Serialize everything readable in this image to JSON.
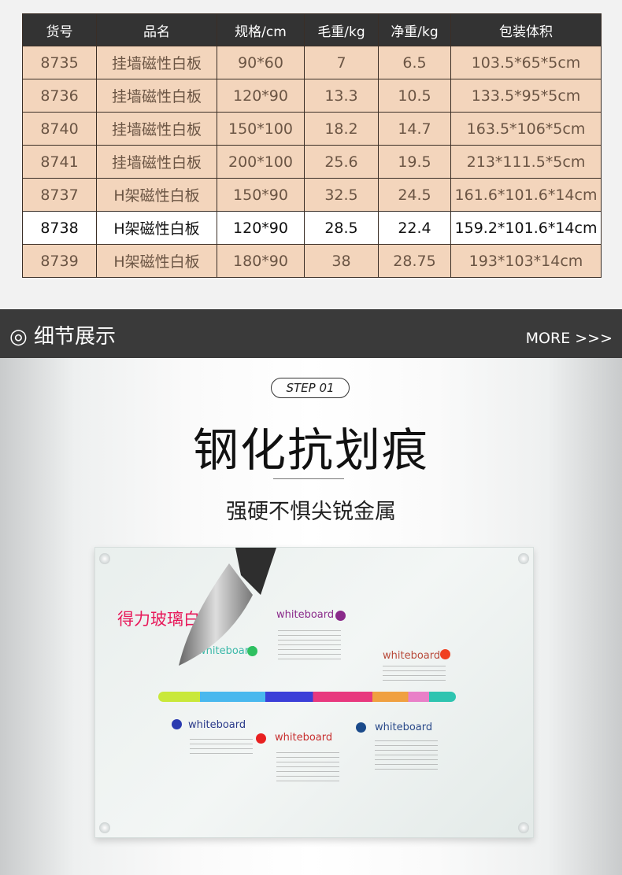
{
  "table": {
    "headers": [
      "货号",
      "品名",
      "规格/cm",
      "毛重/kg",
      "净重/kg",
      "包装体积"
    ],
    "rows": [
      [
        "8735",
        "挂墙磁性白板",
        "90*60",
        "7",
        "6.5",
        "103.5*65*5cm"
      ],
      [
        "8736",
        "挂墙磁性白板",
        "120*90",
        "13.3",
        "10.5",
        "133.5*95*5cm"
      ],
      [
        "8740",
        "挂墙磁性白板",
        "150*100",
        "18.2",
        "14.7",
        "163.5*106*5cm"
      ],
      [
        "8741",
        "挂墙磁性白板",
        "200*100",
        "25.6",
        "19.5",
        "213*111.5*5cm"
      ],
      [
        "8737",
        "H架磁性白板",
        "150*90",
        "32.5",
        "24.5",
        "161.6*101.6*14cm"
      ],
      [
        "8738",
        "H架磁性白板",
        "120*90",
        "28.5",
        "22.4",
        "159.2*101.6*14cm"
      ],
      [
        "8739",
        "H架磁性白板",
        "180*90",
        "38",
        "28.75",
        "193*103*14cm"
      ]
    ],
    "highlight_row": 5
  },
  "section": {
    "icon": "target-circle-icon",
    "title": "细节展示",
    "more": "MORE >>>"
  },
  "feature": {
    "step": "STEP 01",
    "title": "钢化抗划痕",
    "subtitle": "强硬不惧尖锐金属"
  },
  "board": {
    "brand": "得力玻璃白",
    "labels": [
      "whiteboard",
      "whiteboard",
      "whiteboard",
      "whiteboard",
      "whiteboard",
      "whiteboard"
    ],
    "colors": {
      "brand": "#e8195a",
      "header": "#333333",
      "row": "#f3d5bc"
    }
  }
}
